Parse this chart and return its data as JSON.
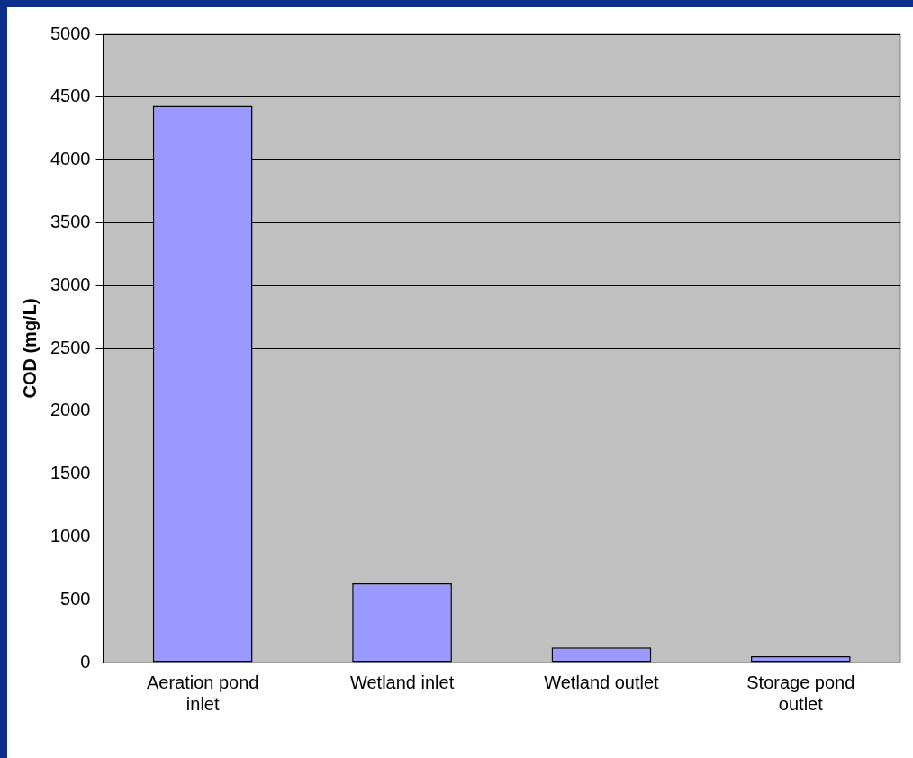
{
  "chart_data": {
    "type": "bar",
    "ylabel": "COD (mg/L)",
    "categories": [
      "Aeration pond inlet",
      "Wetland inlet",
      "Wetland outlet",
      "Storage pond outlet"
    ],
    "values": [
      4430,
      630,
      120,
      50
    ],
    "color": "#9999ff",
    "ylim": [
      0,
      5000
    ],
    "yticks": [
      0,
      500,
      1000,
      1500,
      2000,
      2500,
      3000,
      3500,
      4000,
      4500,
      5000
    ],
    "grid": "y",
    "legend": false
  }
}
